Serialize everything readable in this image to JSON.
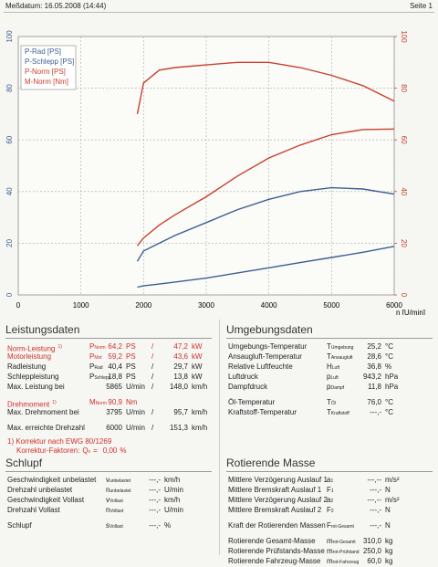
{
  "header": {
    "date": "Meßdatum: 16.05.2008 (14:44)",
    "page": "Seite 1"
  },
  "chart_data": {
    "type": "line",
    "x": [
      1900,
      2000,
      2250,
      2500,
      3000,
      3500,
      4000,
      4500,
      5000,
      5500,
      6000
    ],
    "xlim": [
      0,
      6000
    ],
    "xticks": [
      0,
      1000,
      2000,
      3000,
      4000,
      5000,
      6000
    ],
    "xlabel": "n [U/min]",
    "ylim": [
      0,
      100
    ],
    "yticks": [
      0,
      20,
      40,
      60,
      80,
      100
    ],
    "y2lim": [
      0,
      100
    ],
    "y2ticks": [
      0,
      20,
      40,
      60,
      80,
      100
    ],
    "y2color": "#c8402e",
    "grid": true,
    "legend": "upper left",
    "series": [
      {
        "name": "P-Rad [PS]",
        "color": "#3d5f8f",
        "values": [
          13,
          17,
          20,
          23,
          28,
          33,
          37,
          40,
          41.5,
          41,
          39
        ]
      },
      {
        "name": "P-Schlepp [PS]",
        "color": "#3d5f8f",
        "values": [
          3,
          3.5,
          4.2,
          5,
          6.5,
          8.5,
          10.5,
          12.5,
          14.5,
          16.5,
          18.8
        ]
      },
      {
        "name": "P-Norm [PS]",
        "color": "#c8402e",
        "values": [
          19,
          22,
          27,
          31,
          38,
          46,
          53,
          58,
          62,
          64,
          64.2
        ]
      },
      {
        "name": "M-Norm [Nm]",
        "color": "#c8402e",
        "axis": "y2",
        "values": [
          70,
          82,
          87,
          88,
          89,
          90,
          90,
          88,
          85,
          81,
          75
        ]
      }
    ]
  },
  "leistung": {
    "title": "Leistungsdaten",
    "rows": [
      {
        "label": "Norm-Leistung",
        "note": "1)",
        "sym": "P",
        "sub": "Norm",
        "value": "64,2",
        "unit": "PS",
        "sep": "/",
        "value2": "47,2",
        "unit2": "kW",
        "color": "#d0302a"
      },
      {
        "label": "Motorleistung",
        "sym": "P",
        "sub": "Mot",
        "value": "59,2",
        "unit": "PS",
        "sep": "/",
        "value2": "43,6",
        "unit2": "kW",
        "color": "#d0302a"
      },
      {
        "label": "Radleistung",
        "sym": "P",
        "sub": "Rad",
        "value": "40,4",
        "unit": "PS",
        "sep": "/",
        "value2": "29,7",
        "unit2": "kW"
      },
      {
        "label": "Schleppleistung",
        "sym": "P",
        "sub": "Schlepp",
        "value": "18,8",
        "unit": "PS",
        "sep": "/",
        "value2": "13,8",
        "unit2": "kW"
      },
      {
        "label": "Max. Leistung bei",
        "value": "5865",
        "unit": "U/min",
        "sep": "/",
        "value2": "148,0",
        "unit2": "km/h"
      },
      {
        "label": "Drehmoment",
        "note": "1)",
        "sym": "M",
        "sub": "Norm",
        "value": "90,9",
        "unit": "Nm",
        "color": "#d0302a"
      },
      {
        "label": "Max. Drehmoment bei",
        "value": "3795",
        "unit": "U/min",
        "sep": "/",
        "value2": "95,7",
        "unit2": "km/h"
      },
      {
        "label": "Max. erreichte Drehzahl",
        "value": "6000",
        "unit": "U/min",
        "sep": "/",
        "value2": "151,3",
        "unit2": "km/h"
      }
    ],
    "note": "1) Korrektur nach EWG 80/1269",
    "factor": {
      "label": "Korrektur-Faktoren:",
      "sym": "Q",
      "sub": "v",
      "eq": "=",
      "value": "0,00",
      "unit": "%"
    }
  },
  "umgebung": {
    "title": "Umgebungsdaten",
    "rows": [
      {
        "label": "Umgebungs-Temperatur",
        "sym": "T",
        "sub": "Umgebung",
        "value": "25,2",
        "unit": "°C"
      },
      {
        "label": "Ansaugluft-Temperatur",
        "sym": "T",
        "sub": "Ansaugluft",
        "value": "28,6",
        "unit": "°C"
      },
      {
        "label": "Relative Luftfeuchte",
        "sym": "H",
        "sub": "Luft",
        "value": "36,8",
        "unit": "%"
      },
      {
        "label": "Luftdruck",
        "sym": "p",
        "sub": "Luft",
        "value": "943,2",
        "unit": "hPa"
      },
      {
        "label": "Dampfdruck",
        "sym": "p",
        "sub": "Dampf",
        "value": "11,8",
        "unit": "hPa"
      },
      {
        "label": "Öl-Temperatur",
        "sym": "T",
        "sub": "Öl",
        "value": "76,0",
        "unit": "°C"
      },
      {
        "label": "Kraftstoff-Temperatur",
        "sym": "T",
        "sub": "Kraftstoff",
        "value": "---,-",
        "unit": "°C"
      }
    ]
  },
  "schlupf": {
    "title": "Schlupf",
    "rows": [
      {
        "label": "Geschwindigkeit unbelastet",
        "sym": "v",
        "sub": "unbelastet",
        "value": "---,-",
        "unit": "km/h"
      },
      {
        "label": "Drehzahl unbelastet",
        "sym": "n",
        "sub": "unbelastet",
        "value": "---,-",
        "unit": "U/min"
      },
      {
        "label": "Geschwindigkeit Vollast",
        "sym": "v",
        "sub": "Vollast",
        "value": "---,-",
        "unit": "km/h"
      },
      {
        "label": "Drehzahl Vollast",
        "sym": "n",
        "sub": "Vollast",
        "value": "---,-",
        "unit": "U/min"
      },
      {
        "label": "Schlupf",
        "sym": "s",
        "sub": "Vollast",
        "value": "---,-",
        "unit": "%"
      }
    ]
  },
  "masse": {
    "title": "Rotierende Masse",
    "rows": [
      {
        "label": "Mittlere Verzögerung Auslauf 1",
        "sym": "a",
        "sub": "1",
        "value": "---,--",
        "unit": "m/s²"
      },
      {
        "label": "Mittlere Bremskraft Auslauf 1",
        "sym": "F",
        "sub": "1",
        "value": "---,-",
        "unit": "N"
      },
      {
        "label": "Mittlere Verzögerung Auslauf 2",
        "sym": "a",
        "sub": "2",
        "value": "---,--",
        "unit": "m/s²"
      },
      {
        "label": "Mittlere Bremskraft Auslauf 2",
        "sym": "F",
        "sub": "2",
        "value": "---,-",
        "unit": "N"
      },
      {
        "label": "Kraft der Rotierenden Massen",
        "sym": "F",
        "sub": "rot-Gesamt",
        "value": "---,-",
        "unit": "N"
      },
      {
        "label": "Rotierende Gesamt-Masse",
        "sym": "m",
        "sub": "rot-Gesamt",
        "value": "310,0",
        "unit": "kg"
      },
      {
        "label": "Rotierende Prüfstands-Masse",
        "sym": "m",
        "sub": "rot-Prüfstand",
        "value": "250,0",
        "unit": "kg"
      },
      {
        "label": "Rotierende Fahrzeug-Masse",
        "sym": "m",
        "sub": "rot-Fahrzeug",
        "value": "60,0",
        "unit": "kg"
      }
    ]
  }
}
